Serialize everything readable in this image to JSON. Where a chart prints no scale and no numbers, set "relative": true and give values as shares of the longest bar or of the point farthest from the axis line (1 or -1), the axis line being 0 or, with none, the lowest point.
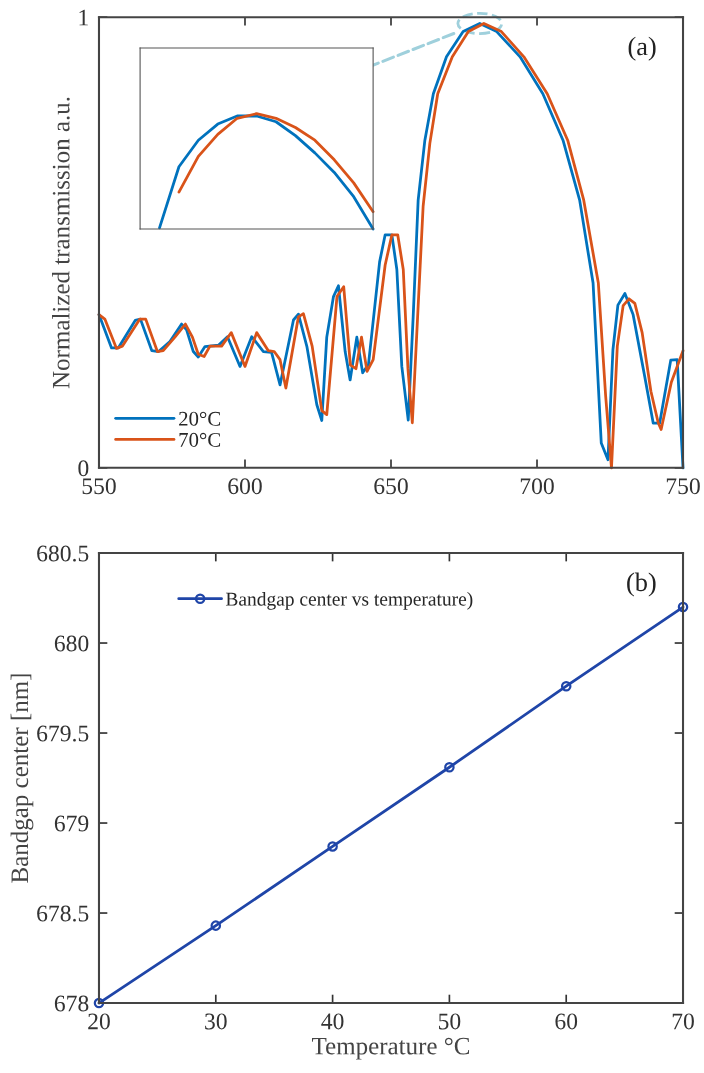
{
  "chart_data": [
    {
      "type": "line",
      "ylabel": "Normalized transmission a.u.",
      "annotations": [
        "(a)"
      ],
      "xlim": [
        550,
        750
      ],
      "xticks": [
        550,
        600,
        650,
        700,
        750
      ],
      "ylim": [
        0,
        1
      ],
      "yticks": [
        0,
        1
      ],
      "legend": "bottom left",
      "grid": false,
      "marker": "none",
      "line_style": "solid",
      "series": [
        {
          "name": "20°C",
          "color": "#0072bd",
          "x": [
            550,
            554.3,
            556.6,
            562.4,
            564.2,
            568.1,
            570.4,
            574.3,
            578.3,
            580,
            582.3,
            584,
            586.3,
            590.9,
            594,
            598.3,
            602.3,
            606.3,
            609.1,
            612,
            616.6,
            618.3,
            621.2,
            624.6,
            626.3,
            628,
            630.3,
            632,
            634.3,
            636,
            638.3,
            640.3,
            642.3,
            646.1,
            648,
            650.3,
            652,
            653.7,
            655.9,
            657.6,
            659.3,
            661.6,
            664.5,
            669,
            674.7,
            680.4,
            686.2,
            694.2,
            702,
            708.9,
            714.6,
            719.2,
            722,
            724.3,
            726,
            727.7,
            730.1,
            732.9,
            736.9,
            739.8,
            742,
            745.8,
            748,
            750
          ],
          "values": [
            0.34,
            0.266,
            0.266,
            0.327,
            0.33,
            0.26,
            0.258,
            0.28,
            0.319,
            0.306,
            0.258,
            0.246,
            0.269,
            0.272,
            0.291,
            0.225,
            0.291,
            0.258,
            0.256,
            0.184,
            0.328,
            0.341,
            0.269,
            0.14,
            0.105,
            0.29,
            0.38,
            0.404,
            0.258,
            0.195,
            0.29,
            0.211,
            0.23,
            0.457,
            0.517,
            0.517,
            0.44,
            0.225,
            0.106,
            0.336,
            0.594,
            0.727,
            0.83,
            0.912,
            0.968,
            0.986,
            0.968,
            0.912,
            0.83,
            0.727,
            0.594,
            0.41,
            0.055,
            0.018,
            0.262,
            0.361,
            0.387,
            0.34,
            0.202,
            0.099,
            0.099,
            0.239,
            0.24,
            0
          ]
        },
        {
          "name": "70°C",
          "color": "#d95319",
          "x": [
            550,
            552,
            556,
            558,
            564,
            566,
            570,
            572,
            576,
            579.6,
            582,
            584,
            586,
            588,
            592,
            595.3,
            600,
            604,
            608,
            610,
            612,
            614,
            618.3,
            620,
            623,
            626.3,
            628,
            631.5,
            633.8,
            636.1,
            638,
            639.9,
            641.8,
            643.9,
            648,
            650.3,
            652.3,
            654.2,
            655.8,
            657.3,
            659,
            661,
            663.3,
            666,
            671,
            676.5,
            681.8,
            687.8,
            695.5,
            703.5,
            710.5,
            716,
            721,
            723.5,
            725.5,
            727.5,
            729.5,
            731.5,
            733.5,
            736,
            739,
            741.5,
            742.5,
            746,
            750
          ],
          "values": [
            0.34,
            0.33,
            0.265,
            0.27,
            0.33,
            0.33,
            0.258,
            0.26,
            0.29,
            0.319,
            0.29,
            0.252,
            0.247,
            0.27,
            0.27,
            0.3,
            0.225,
            0.3,
            0.26,
            0.258,
            0.24,
            0.177,
            0.335,
            0.342,
            0.27,
            0.127,
            0.118,
            0.38,
            0.402,
            0.228,
            0.22,
            0.29,
            0.214,
            0.24,
            0.45,
            0.517,
            0.517,
            0.44,
            0.22,
            0.1,
            0.32,
            0.58,
            0.72,
            0.83,
            0.912,
            0.968,
            0.986,
            0.968,
            0.912,
            0.83,
            0.727,
            0.594,
            0.41,
            0.16,
            0,
            0.27,
            0.36,
            0.375,
            0.365,
            0.3,
            0.17,
            0.1,
            0.085,
            0.19,
            0.26
          ]
        }
      ]
    },
    {
      "type": "line",
      "relative": true,
      "grid": false,
      "line_style": "solid",
      "categories": [
        null,
        null,
        null,
        null,
        null,
        null,
        null,
        null,
        null,
        null,
        null,
        null,
        null
      ],
      "series": [
        {
          "color": "#0072bd",
          "values": [
            null,
            0.01,
            0.54,
            0.77,
            0.91,
            0.98,
            0.98,
            0.93,
            0.81,
            0.66,
            0.49,
            0.28,
            0
          ]
        },
        {
          "color": "#d95319",
          "values": [
            null,
            null,
            0.32,
            0.63,
            0.82,
            0.96,
            1.0,
            0.96,
            0.88,
            0.77,
            0.6,
            0.4,
            0.15
          ]
        }
      ]
    },
    {
      "type": "line",
      "xlabel": "Temperature °C",
      "ylabel": "Bandgap center [nm]",
      "annotations": [
        "(b)"
      ],
      "xlim": [
        20,
        70
      ],
      "xticks": [
        20,
        30,
        40,
        50,
        60,
        70
      ],
      "ylim": [
        678,
        680.5
      ],
      "yticks": [
        678,
        678.5,
        679,
        679.5,
        680,
        680.5
      ],
      "legend": "top left",
      "grid": false,
      "marker": "circle",
      "line_style": "solid",
      "series": [
        {
          "name": "Bandgap center vs temperature)",
          "color": "#1f45a8",
          "x": [
            20,
            30,
            40,
            50,
            60,
            70
          ],
          "values": [
            678.0,
            678.43,
            678.87,
            679.31,
            679.76,
            680.2
          ]
        }
      ]
    }
  ]
}
